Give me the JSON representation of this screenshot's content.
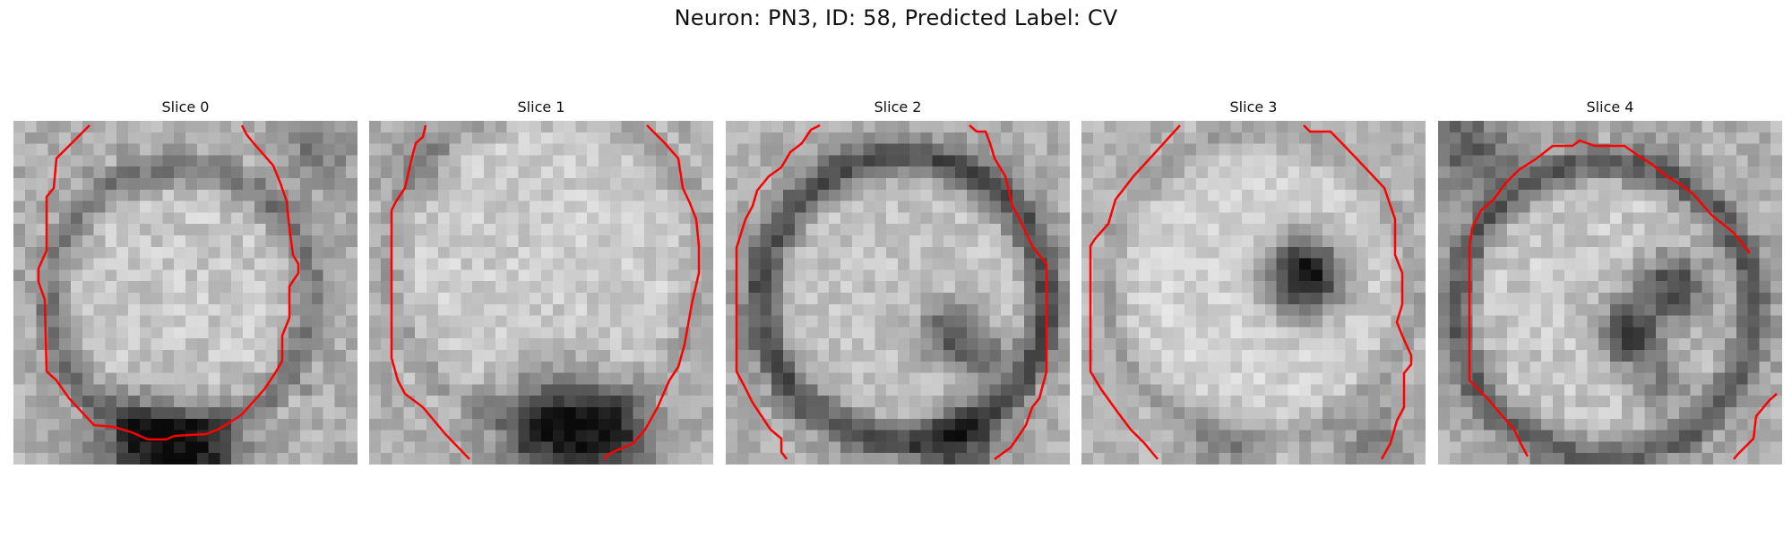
{
  "figure": {
    "title": "Neuron: PN3, ID: 58, Predicted Label: CV",
    "contour_color": "#ff0000",
    "slices": [
      {
        "label": "Slice 0",
        "dark_spots": [],
        "ring": "dark-outer"
      },
      {
        "label": "Slice 1",
        "dark_spots": [
          "bottom"
        ],
        "ring": "dark-bottom"
      },
      {
        "label": "Slice 2",
        "dark_spots": [
          "center-right"
        ],
        "ring": "dark-ring"
      },
      {
        "label": "Slice 3",
        "dark_spots": [
          "center"
        ],
        "ring": "light"
      },
      {
        "label": "Slice 4",
        "dark_spots": [
          "center-right"
        ],
        "ring": "dark-ring"
      }
    ]
  }
}
